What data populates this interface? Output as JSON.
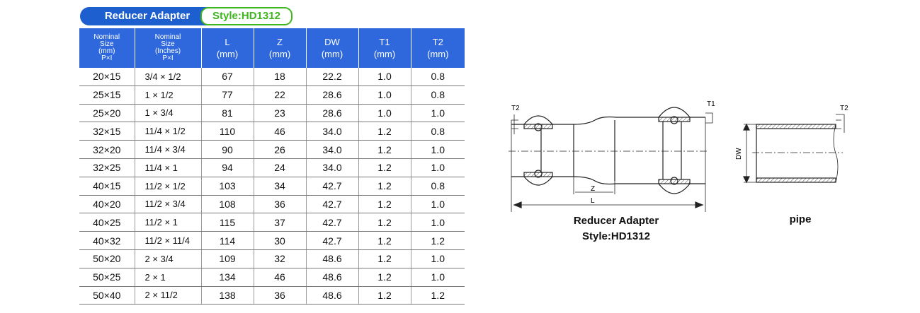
{
  "title": "Reducer Adapter",
  "style_code": "Style:HD1312",
  "table": {
    "headers": [
      [
        "Nominal",
        "Size",
        "(mm)",
        "P×I"
      ],
      [
        "Nominal",
        "Size",
        "(Inches)",
        "P×I"
      ],
      [
        "L",
        "(mm)"
      ],
      [
        "Z",
        "(mm)"
      ],
      [
        "DW",
        "(mm)"
      ],
      [
        "T1",
        "(mm)"
      ],
      [
        "T2",
        "(mm)"
      ]
    ],
    "rows": [
      [
        "20×15",
        "3/4 × 1/2",
        "67",
        "18",
        "22.2",
        "1.0",
        "0.8"
      ],
      [
        "25×15",
        "1 × 1/2",
        "77",
        "22",
        "28.6",
        "1.0",
        "0.8"
      ],
      [
        "25×20",
        "1 × 3/4",
        "81",
        "23",
        "28.6",
        "1.0",
        "1.0"
      ],
      [
        "32×15",
        "11/4 × 1/2",
        "110",
        "46",
        "34.0",
        "1.2",
        "0.8"
      ],
      [
        "32×20",
        "11/4 × 3/4",
        "90",
        "26",
        "34.0",
        "1.2",
        "1.0"
      ],
      [
        "32×25",
        "11/4 × 1",
        "94",
        "24",
        "34.0",
        "1.2",
        "1.0"
      ],
      [
        "40×15",
        "11/2 × 1/2",
        "103",
        "34",
        "42.7",
        "1.2",
        "0.8"
      ],
      [
        "40×20",
        "11/2 × 3/4",
        "108",
        "36",
        "42.7",
        "1.2",
        "1.0"
      ],
      [
        "40×25",
        "11/2 × 1",
        "115",
        "37",
        "42.7",
        "1.2",
        "1.0"
      ],
      [
        "40×32",
        "11/2 × 11/4",
        "114",
        "30",
        "42.7",
        "1.2",
        "1.2"
      ],
      [
        "50×20",
        "2 × 3/4",
        "109",
        "32",
        "48.6",
        "1.2",
        "1.0"
      ],
      [
        "50×25",
        "2 × 1",
        "134",
        "46",
        "48.6",
        "1.2",
        "1.0"
      ],
      [
        "50×40",
        "2 × 11/2",
        "138",
        "36",
        "48.6",
        "1.2",
        "1.2"
      ]
    ]
  },
  "drawing": {
    "labels": {
      "t1": "T1",
      "t2_fitting": "T2",
      "t2_pipe": "T2",
      "z": "Z",
      "l": "L",
      "dw": "DW"
    },
    "caption_line1": "Reducer Adapter",
    "caption_line2": "Style:HD1312",
    "pipe_caption": "pipe"
  }
}
